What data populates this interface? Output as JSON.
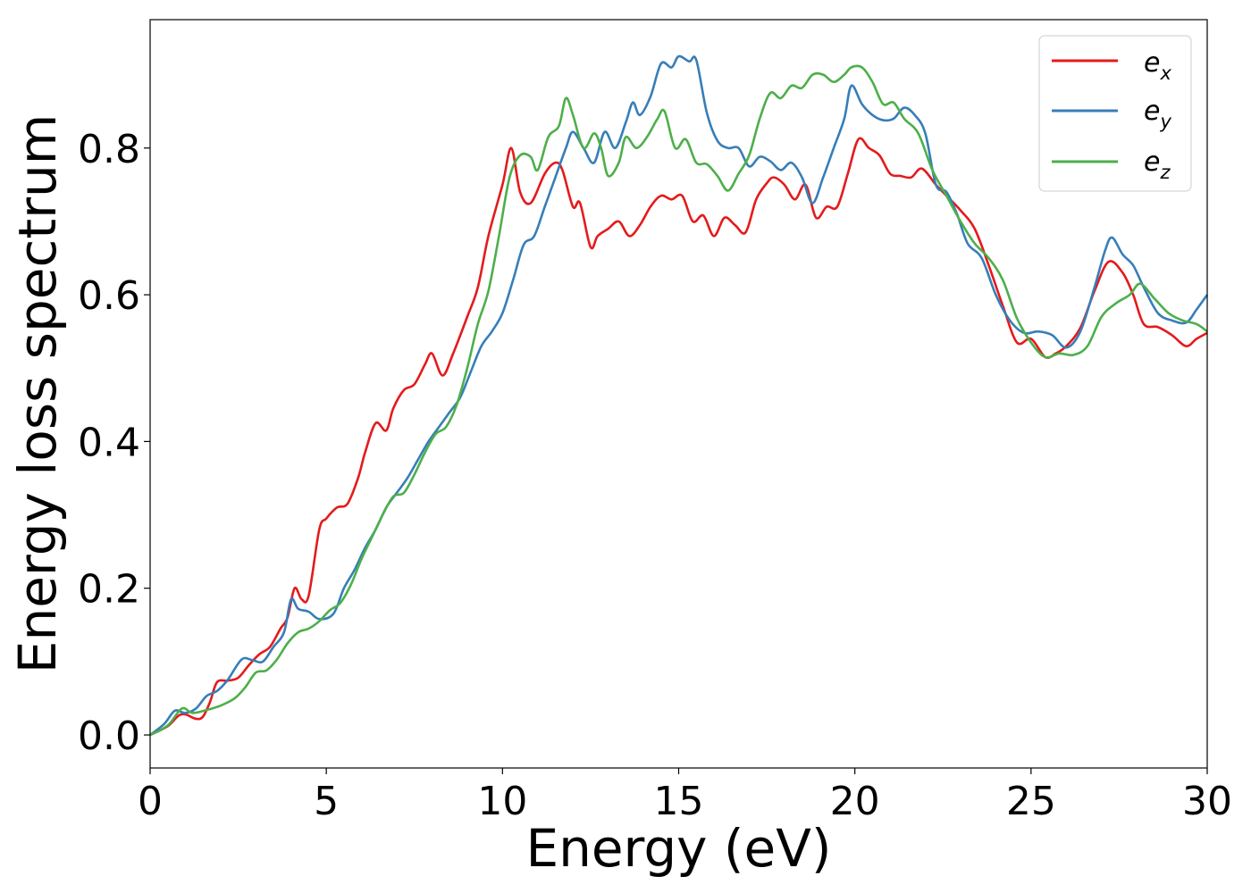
{
  "chart_data": {
    "type": "line",
    "xlabel": "Energy (eV)",
    "ylabel": "Energy loss spectrum",
    "xlim": [
      0,
      30
    ],
    "ylim": [
      -0.045,
      0.975
    ],
    "xticks": [
      "0",
      "5",
      "10",
      "15",
      "20",
      "25",
      "30"
    ],
    "yticks": [
      "0.0",
      "0.2",
      "0.4",
      "0.6",
      "0.8"
    ],
    "xtick_values": [
      0,
      5,
      10,
      15,
      20,
      25,
      30
    ],
    "ytick_values": [
      0.0,
      0.2,
      0.4,
      0.6,
      0.8
    ],
    "grid": false,
    "legend_position": "top-right",
    "series": [
      {
        "name": "ex",
        "label_base": "e",
        "label_sub": "x",
        "color": "#e41a1c",
        "points": [
          [
            0,
            0
          ],
          [
            0.5,
            0.012
          ],
          [
            0.8,
            0.026
          ],
          [
            1.0,
            0.028
          ],
          [
            1.3,
            0.022
          ],
          [
            1.5,
            0.025
          ],
          [
            1.7,
            0.045
          ],
          [
            1.9,
            0.072
          ],
          [
            2.2,
            0.074
          ],
          [
            2.5,
            0.078
          ],
          [
            2.8,
            0.095
          ],
          [
            3.1,
            0.11
          ],
          [
            3.4,
            0.12
          ],
          [
            3.7,
            0.145
          ],
          [
            3.9,
            0.16
          ],
          [
            4.1,
            0.2
          ],
          [
            4.3,
            0.185
          ],
          [
            4.5,
            0.19
          ],
          [
            4.8,
            0.28
          ],
          [
            5.0,
            0.295
          ],
          [
            5.3,
            0.31
          ],
          [
            5.6,
            0.315
          ],
          [
            5.9,
            0.35
          ],
          [
            6.1,
            0.385
          ],
          [
            6.4,
            0.425
          ],
          [
            6.7,
            0.415
          ],
          [
            6.9,
            0.445
          ],
          [
            7.2,
            0.47
          ],
          [
            7.5,
            0.478
          ],
          [
            7.8,
            0.505
          ],
          [
            8.0,
            0.52
          ],
          [
            8.3,
            0.49
          ],
          [
            8.6,
            0.52
          ],
          [
            9.0,
            0.57
          ],
          [
            9.3,
            0.61
          ],
          [
            9.6,
            0.68
          ],
          [
            10.0,
            0.75
          ],
          [
            10.25,
            0.8
          ],
          [
            10.5,
            0.74
          ],
          [
            10.8,
            0.725
          ],
          [
            11.2,
            0.765
          ],
          [
            11.5,
            0.78
          ],
          [
            11.7,
            0.77
          ],
          [
            12.0,
            0.72
          ],
          [
            12.2,
            0.725
          ],
          [
            12.5,
            0.665
          ],
          [
            12.7,
            0.68
          ],
          [
            13.0,
            0.69
          ],
          [
            13.3,
            0.7
          ],
          [
            13.6,
            0.68
          ],
          [
            13.9,
            0.695
          ],
          [
            14.2,
            0.72
          ],
          [
            14.5,
            0.735
          ],
          [
            14.8,
            0.73
          ],
          [
            15.1,
            0.735
          ],
          [
            15.4,
            0.7
          ],
          [
            15.7,
            0.708
          ],
          [
            16.0,
            0.68
          ],
          [
            16.3,
            0.705
          ],
          [
            16.6,
            0.695
          ],
          [
            16.9,
            0.685
          ],
          [
            17.2,
            0.73
          ],
          [
            17.5,
            0.752
          ],
          [
            17.7,
            0.76
          ],
          [
            18.0,
            0.75
          ],
          [
            18.3,
            0.73
          ],
          [
            18.6,
            0.75
          ],
          [
            18.9,
            0.705
          ],
          [
            19.2,
            0.72
          ],
          [
            19.5,
            0.72
          ],
          [
            19.8,
            0.765
          ],
          [
            20.1,
            0.812
          ],
          [
            20.4,
            0.8
          ],
          [
            20.7,
            0.79
          ],
          [
            21.0,
            0.765
          ],
          [
            21.3,
            0.762
          ],
          [
            21.6,
            0.76
          ],
          [
            21.9,
            0.772
          ],
          [
            22.3,
            0.75
          ],
          [
            22.6,
            0.735
          ],
          [
            23.0,
            0.715
          ],
          [
            23.4,
            0.69
          ],
          [
            23.8,
            0.64
          ],
          [
            24.2,
            0.585
          ],
          [
            24.6,
            0.535
          ],
          [
            25.0,
            0.54
          ],
          [
            25.4,
            0.515
          ],
          [
            25.7,
            0.52
          ],
          [
            26.0,
            0.53
          ],
          [
            26.4,
            0.555
          ],
          [
            26.8,
            0.605
          ],
          [
            27.2,
            0.645
          ],
          [
            27.6,
            0.63
          ],
          [
            27.9,
            0.6
          ],
          [
            28.2,
            0.56
          ],
          [
            28.6,
            0.556
          ],
          [
            29.0,
            0.545
          ],
          [
            29.4,
            0.53
          ],
          [
            29.7,
            0.54
          ],
          [
            30.0,
            0.548
          ]
        ]
      },
      {
        "name": "ey",
        "label_base": "e",
        "label_sub": "y",
        "color": "#377eb8",
        "points": [
          [
            0,
            0
          ],
          [
            0.4,
            0.015
          ],
          [
            0.7,
            0.033
          ],
          [
            1.0,
            0.03
          ],
          [
            1.3,
            0.036
          ],
          [
            1.6,
            0.053
          ],
          [
            1.9,
            0.06
          ],
          [
            2.2,
            0.075
          ],
          [
            2.6,
            0.103
          ],
          [
            2.9,
            0.102
          ],
          [
            3.2,
            0.1
          ],
          [
            3.5,
            0.12
          ],
          [
            3.8,
            0.14
          ],
          [
            4.0,
            0.185
          ],
          [
            4.2,
            0.172
          ],
          [
            4.5,
            0.168
          ],
          [
            4.8,
            0.158
          ],
          [
            5.2,
            0.165
          ],
          [
            5.5,
            0.2
          ],
          [
            5.8,
            0.225
          ],
          [
            6.1,
            0.255
          ],
          [
            6.4,
            0.28
          ],
          [
            6.7,
            0.31
          ],
          [
            7.0,
            0.33
          ],
          [
            7.3,
            0.35
          ],
          [
            7.6,
            0.375
          ],
          [
            7.9,
            0.4
          ],
          [
            8.2,
            0.42
          ],
          [
            8.5,
            0.44
          ],
          [
            8.8,
            0.46
          ],
          [
            9.1,
            0.495
          ],
          [
            9.4,
            0.53
          ],
          [
            9.7,
            0.55
          ],
          [
            10.0,
            0.575
          ],
          [
            10.3,
            0.62
          ],
          [
            10.6,
            0.668
          ],
          [
            10.9,
            0.68
          ],
          [
            11.2,
            0.72
          ],
          [
            11.5,
            0.76
          ],
          [
            11.8,
            0.8
          ],
          [
            12.0,
            0.822
          ],
          [
            12.3,
            0.8
          ],
          [
            12.6,
            0.78
          ],
          [
            12.9,
            0.822
          ],
          [
            13.2,
            0.8
          ],
          [
            13.5,
            0.835
          ],
          [
            13.7,
            0.862
          ],
          [
            13.9,
            0.845
          ],
          [
            14.2,
            0.87
          ],
          [
            14.5,
            0.915
          ],
          [
            14.8,
            0.91
          ],
          [
            15.0,
            0.925
          ],
          [
            15.3,
            0.918
          ],
          [
            15.5,
            0.92
          ],
          [
            15.8,
            0.848
          ],
          [
            16.1,
            0.81
          ],
          [
            16.4,
            0.8
          ],
          [
            16.7,
            0.8
          ],
          [
            17.0,
            0.775
          ],
          [
            17.3,
            0.788
          ],
          [
            17.6,
            0.782
          ],
          [
            17.9,
            0.77
          ],
          [
            18.2,
            0.78
          ],
          [
            18.5,
            0.76
          ],
          [
            18.8,
            0.725
          ],
          [
            19.1,
            0.76
          ],
          [
            19.4,
            0.8
          ],
          [
            19.7,
            0.84
          ],
          [
            19.9,
            0.885
          ],
          [
            20.2,
            0.86
          ],
          [
            20.5,
            0.845
          ],
          [
            20.8,
            0.838
          ],
          [
            21.1,
            0.84
          ],
          [
            21.4,
            0.855
          ],
          [
            21.7,
            0.845
          ],
          [
            22.0,
            0.82
          ],
          [
            22.3,
            0.75
          ],
          [
            22.6,
            0.74
          ],
          [
            22.9,
            0.71
          ],
          [
            23.2,
            0.67
          ],
          [
            23.6,
            0.65
          ],
          [
            24.0,
            0.6
          ],
          [
            24.4,
            0.565
          ],
          [
            24.8,
            0.548
          ],
          [
            25.2,
            0.55
          ],
          [
            25.6,
            0.545
          ],
          [
            26.0,
            0.528
          ],
          [
            26.4,
            0.55
          ],
          [
            26.8,
            0.61
          ],
          [
            27.1,
            0.66
          ],
          [
            27.3,
            0.678
          ],
          [
            27.6,
            0.655
          ],
          [
            27.9,
            0.64
          ],
          [
            28.2,
            0.61
          ],
          [
            28.6,
            0.575
          ],
          [
            29.0,
            0.565
          ],
          [
            29.4,
            0.562
          ],
          [
            29.7,
            0.58
          ],
          [
            30.0,
            0.6
          ]
        ]
      },
      {
        "name": "ez",
        "label_base": "e",
        "label_sub": "z",
        "color": "#4daf4a",
        "points": [
          [
            0,
            0
          ],
          [
            0.5,
            0.013
          ],
          [
            0.9,
            0.036
          ],
          [
            1.2,
            0.03
          ],
          [
            1.6,
            0.034
          ],
          [
            2.0,
            0.04
          ],
          [
            2.4,
            0.05
          ],
          [
            2.7,
            0.065
          ],
          [
            3.0,
            0.085
          ],
          [
            3.3,
            0.088
          ],
          [
            3.6,
            0.103
          ],
          [
            3.9,
            0.125
          ],
          [
            4.2,
            0.14
          ],
          [
            4.5,
            0.145
          ],
          [
            4.8,
            0.155
          ],
          [
            5.1,
            0.17
          ],
          [
            5.4,
            0.18
          ],
          [
            5.7,
            0.205
          ],
          [
            6.0,
            0.24
          ],
          [
            6.3,
            0.27
          ],
          [
            6.6,
            0.3
          ],
          [
            6.9,
            0.325
          ],
          [
            7.2,
            0.33
          ],
          [
            7.5,
            0.355
          ],
          [
            7.8,
            0.385
          ],
          [
            8.1,
            0.41
          ],
          [
            8.4,
            0.42
          ],
          [
            8.7,
            0.45
          ],
          [
            9.0,
            0.5
          ],
          [
            9.3,
            0.56
          ],
          [
            9.6,
            0.605
          ],
          [
            9.9,
            0.68
          ],
          [
            10.2,
            0.76
          ],
          [
            10.5,
            0.79
          ],
          [
            10.8,
            0.788
          ],
          [
            11.0,
            0.77
          ],
          [
            11.3,
            0.815
          ],
          [
            11.6,
            0.83
          ],
          [
            11.8,
            0.868
          ],
          [
            12.0,
            0.845
          ],
          [
            12.3,
            0.8
          ],
          [
            12.6,
            0.82
          ],
          [
            12.8,
            0.8
          ],
          [
            13.0,
            0.762
          ],
          [
            13.3,
            0.78
          ],
          [
            13.5,
            0.815
          ],
          [
            13.8,
            0.8
          ],
          [
            14.1,
            0.815
          ],
          [
            14.4,
            0.84
          ],
          [
            14.6,
            0.85
          ],
          [
            14.9,
            0.8
          ],
          [
            15.2,
            0.812
          ],
          [
            15.5,
            0.78
          ],
          [
            15.8,
            0.778
          ],
          [
            16.1,
            0.762
          ],
          [
            16.4,
            0.742
          ],
          [
            16.7,
            0.765
          ],
          [
            17.0,
            0.79
          ],
          [
            17.3,
            0.84
          ],
          [
            17.6,
            0.875
          ],
          [
            17.9,
            0.868
          ],
          [
            18.2,
            0.885
          ],
          [
            18.5,
            0.882
          ],
          [
            18.8,
            0.9
          ],
          [
            19.1,
            0.9
          ],
          [
            19.4,
            0.89
          ],
          [
            19.7,
            0.9
          ],
          [
            19.9,
            0.91
          ],
          [
            20.2,
            0.91
          ],
          [
            20.5,
            0.89
          ],
          [
            20.8,
            0.86
          ],
          [
            21.1,
            0.862
          ],
          [
            21.4,
            0.84
          ],
          [
            21.8,
            0.82
          ],
          [
            22.2,
            0.77
          ],
          [
            22.6,
            0.735
          ],
          [
            23.0,
            0.7
          ],
          [
            23.4,
            0.67
          ],
          [
            23.8,
            0.65
          ],
          [
            24.2,
            0.62
          ],
          [
            24.6,
            0.568
          ],
          [
            25.0,
            0.535
          ],
          [
            25.4,
            0.515
          ],
          [
            25.8,
            0.52
          ],
          [
            26.2,
            0.518
          ],
          [
            26.6,
            0.53
          ],
          [
            27.0,
            0.57
          ],
          [
            27.4,
            0.588
          ],
          [
            27.8,
            0.6
          ],
          [
            28.1,
            0.615
          ],
          [
            28.5,
            0.595
          ],
          [
            28.9,
            0.575
          ],
          [
            29.3,
            0.565
          ],
          [
            29.7,
            0.56
          ],
          [
            30.0,
            0.55
          ]
        ]
      }
    ]
  }
}
